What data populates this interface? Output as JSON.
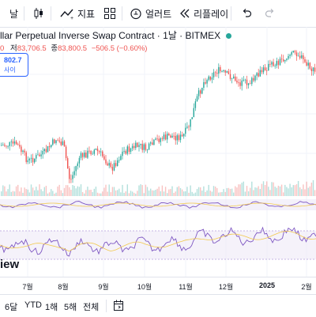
{
  "toolbar": {
    "period_partial": "날",
    "indicators_label": "지표",
    "alerts_label": "얼러트",
    "replay_label": "리플레이"
  },
  "chart": {
    "title": "llar Perpetual Inverse Swap Contract · 1날 · BITMEX",
    "ohlc_partial": "0",
    "low_label": "저",
    "low_value": "83,706.5",
    "close_label": "종",
    "close_value": "83,800.5",
    "change": "−506.5 (−0.60%)",
    "price_box_value": "802.7",
    "price_box_sub": "사이",
    "logo_partial": "iew"
  },
  "colors": {
    "up": "#26a69a",
    "down": "#ef5350",
    "accent": "#2962ff",
    "indicator_purple": "#7e57c2",
    "indicator_yellow": "#f2c94c"
  },
  "xaxis": {
    "ticks": [
      "7월",
      "8월",
      "9월",
      "10월",
      "11월",
      "12월",
      "2025",
      "2월"
    ]
  },
  "bottom_bar": {
    "range_6d_partial": "6달",
    "ytd": "YTD",
    "y1": "1해",
    "y5": "5해",
    "all": "전체"
  }
}
